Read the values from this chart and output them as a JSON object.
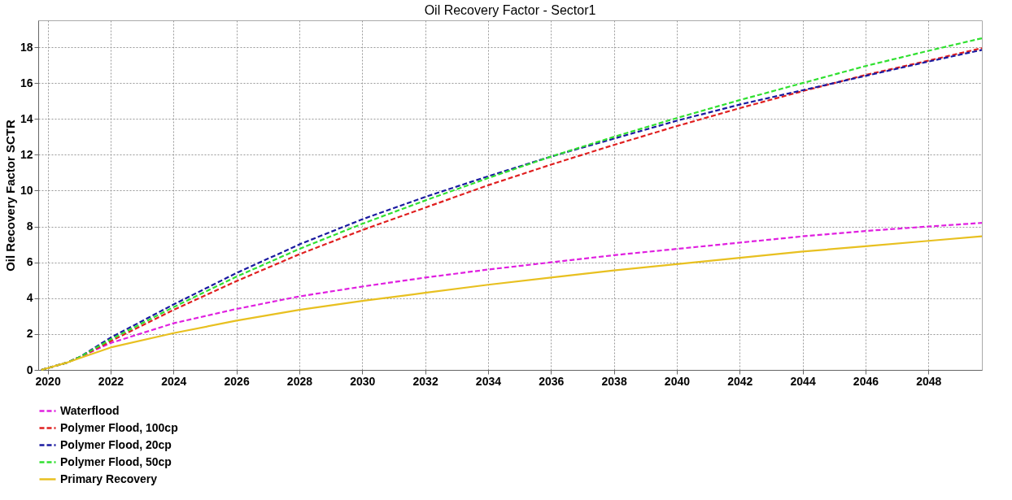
{
  "chart_data": {
    "type": "line",
    "title": "Oil Recovery Factor - Sector1",
    "ylabel": "Oil Recovery Factor SCTR",
    "xlim": [
      2019.7,
      2049.7
    ],
    "xticks": [
      2020,
      2022,
      2024,
      2026,
      2028,
      2030,
      2032,
      2034,
      2036,
      2038,
      2040,
      2042,
      2044,
      2046,
      2048
    ],
    "ylim": [
      0,
      19.5
    ],
    "yticks": [
      0,
      2,
      4,
      6,
      8,
      10,
      12,
      14,
      16,
      18
    ],
    "grid": true,
    "legend": "bottom",
    "marker": "none",
    "x": [
      2019.8,
      2020.6,
      2021,
      2022,
      2024,
      2026,
      2028,
      2030,
      2032,
      2034,
      2036,
      2038,
      2040,
      2042,
      2044,
      2046,
      2048,
      2049.7
    ],
    "series": [
      {
        "name": "Waterflood",
        "color": "#e020e0",
        "line_style": "dashed",
        "values": [
          0,
          0.4,
          0.7,
          1.5,
          2.6,
          3.4,
          4.1,
          4.65,
          5.15,
          5.6,
          6.0,
          6.4,
          6.75,
          7.1,
          7.45,
          7.75,
          8.0,
          8.2
        ]
      },
      {
        "name": "Polymer Flood, 100cp",
        "color": "#e02020",
        "line_style": "dashed",
        "values": [
          0,
          0.4,
          0.7,
          1.6,
          3.35,
          4.95,
          6.45,
          7.8,
          9.05,
          10.3,
          11.45,
          12.55,
          13.6,
          14.6,
          15.55,
          16.45,
          17.25,
          17.95
        ]
      },
      {
        "name": "Polymer Flood, 20cp",
        "color": "#1a1aa0",
        "line_style": "dashed",
        "values": [
          0,
          0.4,
          0.7,
          1.8,
          3.65,
          5.4,
          7.0,
          8.4,
          9.65,
          10.8,
          11.9,
          12.9,
          13.9,
          14.8,
          15.6,
          16.4,
          17.2,
          17.85
        ]
      },
      {
        "name": "Polymer Flood, 50cp",
        "color": "#30e030",
        "line_style": "dashed",
        "values": [
          0,
          0.4,
          0.7,
          1.7,
          3.5,
          5.2,
          6.75,
          8.15,
          9.45,
          10.7,
          11.9,
          13.0,
          14.05,
          15.05,
          16.0,
          16.95,
          17.8,
          18.5
        ]
      },
      {
        "name": "Primary Recovery",
        "color": "#e8c020",
        "line_style": "solid",
        "values": [
          0,
          0.4,
          0.65,
          1.25,
          2.05,
          2.75,
          3.35,
          3.85,
          4.3,
          4.75,
          5.15,
          5.55,
          5.9,
          6.25,
          6.6,
          6.9,
          7.2,
          7.45
        ]
      }
    ]
  }
}
